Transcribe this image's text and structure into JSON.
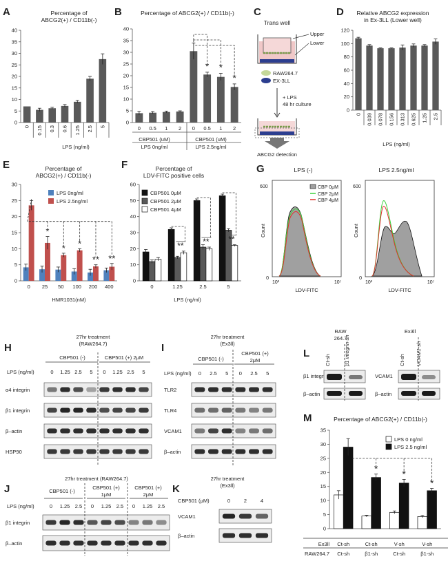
{
  "panels": {
    "A": {
      "letter": "A",
      "title": [
        "Percentage of",
        "ABCG2(+) / CD11b(-)"
      ],
      "chart_data": {
        "type": "bar",
        "categories": [
          "0",
          "0.15",
          "0.3",
          "0.6",
          "1.25",
          "2.5",
          "5"
        ],
        "values": [
          7,
          5.5,
          6.2,
          7.2,
          9,
          19,
          27.5
        ],
        "errors": [
          0,
          0.7,
          0.4,
          0.6,
          0.6,
          1,
          2.3
        ],
        "ylim": [
          0,
          40
        ],
        "yticks": [
          "0",
          "5",
          "10",
          "15",
          "20",
          "25",
          "30",
          "35",
          "40"
        ],
        "xlabel": "LPS (ng/ml)"
      }
    },
    "B": {
      "letter": "B",
      "title": [
        "Percentage of ABCG2(+) / CD11b(-)"
      ],
      "chart_data": {
        "type": "bar",
        "categories": [
          "0",
          "0.5",
          "1",
          "2",
          "0",
          "0.5",
          "1",
          "2"
        ],
        "values": [
          4,
          4.2,
          4.5,
          4.7,
          30.5,
          20.5,
          19.5,
          15.2
        ],
        "errors": [
          0.8,
          0.5,
          0.4,
          0.3,
          3.5,
          1,
          1.5,
          1.3
        ],
        "ylim": [
          0,
          40
        ],
        "yticks": [
          "0",
          "5",
          "10",
          "15",
          "20",
          "25",
          "30",
          "35",
          "40"
        ],
        "group_label": "CBP501 (uM)",
        "groups": [
          "LPS 0ng/ml",
          "LPS 2.5ng/ml"
        ],
        "star": "*"
      }
    },
    "C": {
      "letter": "C",
      "trans": "Trans well",
      "upper": "Upper",
      "lower": "Lower",
      "legend": [
        "RAW264.7",
        "EX-3LL"
      ],
      "lps": "+ LPS",
      "culture": "48 hr culture",
      "detect": "ABCG2 detection"
    },
    "D": {
      "letter": "D",
      "title": [
        "Relative ABCG2 expression",
        "in Ex-3LL (Lower well)"
      ],
      "chart_data": {
        "type": "bar",
        "categories": [
          "0",
          "0.039",
          "0.078",
          "0.156",
          "0.313",
          "0.625",
          "1.25",
          "2.5"
        ],
        "values": [
          108,
          97,
          93,
          93,
          94,
          97,
          97,
          103
        ],
        "errors": [
          1.5,
          1.5,
          0.5,
          0.5,
          4,
          2.5,
          1.5,
          4
        ],
        "ylim": [
          0,
          120
        ],
        "yticks": [
          "0",
          "20",
          "40",
          "60",
          "80",
          "100",
          "120"
        ],
        "xlabel": "LPS (ng/ml)"
      }
    },
    "E": {
      "letter": "E",
      "title": [
        "Percentage of",
        "ABCG2(+) / CD11b(-)"
      ],
      "chart_data": {
        "type": "bar",
        "categories": [
          "0",
          "25",
          "50",
          "100",
          "200",
          "400"
        ],
        "series": [
          {
            "name": "LPS 0ng/ml",
            "color": "#4f81bd",
            "values": [
              4.2,
              3.6,
              3.5,
              2.9,
              2.6,
              3.3
            ],
            "errors": [
              1,
              1,
              0.8,
              0.9,
              1,
              0.7
            ]
          },
          {
            "name": "LPS 2.5ng/ml",
            "color": "#c0504d",
            "values": [
              23.5,
              11.8,
              8,
              9.5,
              4.5,
              4.4
            ],
            "errors": [
              1.5,
              2,
              0.6,
              0.5,
              0.5,
              1
            ]
          }
        ],
        "ylim": [
          0,
          30
        ],
        "yticks": [
          "0",
          "5",
          "10",
          "15",
          "20",
          "25",
          "30"
        ],
        "xlabel": "HMR1031(nM)",
        "stars": [
          "*",
          "*",
          "*",
          "**",
          "**"
        ]
      }
    },
    "F": {
      "letter": "F",
      "title": [
        "Percentage of",
        "LDV-FITC positive cells"
      ],
      "chart_data": {
        "type": "bar",
        "categories": [
          "0",
          "1.25",
          "2.5",
          "5"
        ],
        "series": [
          {
            "name": "CBP501 0μM",
            "color": "#111111",
            "values": [
              18,
              32,
              50,
              53
            ],
            "errors": [
              1.5,
              1,
              1,
              1
            ]
          },
          {
            "name": "CBP501 2μM",
            "color": "#595959",
            "values": [
              12,
              14.5,
              21,
              31.5
            ],
            "errors": [
              1,
              0.8,
              1.5,
              1
            ]
          },
          {
            "name": "CBP501 4μM",
            "color": "#ffffff",
            "values": [
              13.5,
              17.5,
              20,
              22
            ],
            "errors": [
              1,
              1,
              1,
              0.5
            ]
          }
        ],
        "ylim": [
          0,
          60
        ],
        "yticks": [
          "0",
          "10",
          "20",
          "30",
          "40",
          "50",
          "60"
        ],
        "xlabel": "LPS (ng/ml)",
        "stars": [
          "**",
          "**",
          "**"
        ]
      }
    },
    "G": {
      "letter": "G",
      "left_title": "LPS (-)",
      "right_title": "LPS 2.5ng/ml",
      "legend": [
        "CBP 0μM",
        "CBP 2μM",
        "CBP 4μM"
      ],
      "ylabel": "Count",
      "xlabel": "LDV-FITC",
      "ymax": "600",
      "xmin": "10²",
      "xmax": "10⁷"
    },
    "H": {
      "letter": "H",
      "header": [
        "27hr treatment",
        "(RAW264.7)"
      ],
      "groups": [
        "CBP501 (-)",
        "CBP501 (+) 2μM"
      ],
      "lps_label": "LPS (ng/ml)",
      "lanes": [
        "0",
        "1.25",
        "2.5",
        "5",
        "0",
        "1.25",
        "2.5",
        "5"
      ],
      "rows": [
        "α4 integrin",
        "β1 integrin",
        "β–actin",
        "HSP90"
      ]
    },
    "I": {
      "letter": "I",
      "header": [
        "27hr treatment",
        "(Ex3ll)"
      ],
      "groups": [
        "CBP501 (-)",
        "CBP501 (+)",
        "2μM"
      ],
      "lps_label": "LPS (ng/ml)",
      "lanes": [
        "0",
        "2.5",
        "5",
        "0",
        "2.5",
        "5"
      ],
      "rows": [
        "TLR2",
        "TLR4",
        "VCAM1",
        "β–actin"
      ]
    },
    "J": {
      "letter": "J",
      "header": [
        "27hr treatment (RAW264.7)"
      ],
      "groups": [
        "CBP501 (-)",
        "CBP501 (+)",
        "1μM",
        "CBP501 (+)",
        "2μM"
      ],
      "lps_label": "LPS (ng/ml)",
      "lanes": [
        "0",
        "1.25",
        "2.5",
        "0",
        "1.25",
        "2.5",
        "0",
        "1.25",
        "2.5"
      ],
      "rows": [
        "β1 integrin",
        "β–actin"
      ]
    },
    "K": {
      "letter": "K",
      "header": [
        "27hr treatment",
        "(Ex3ll)"
      ],
      "lane_label": "CBP501 (μM)",
      "lanes": [
        "0",
        "2",
        "4"
      ],
      "rows": [
        "VCAM1",
        "β–actin"
      ]
    },
    "L": {
      "letter": "L",
      "left_header": [
        "RAW",
        "264.7"
      ],
      "left_lanes": [
        "Ct-sh",
        "β1 integrin-sh"
      ],
      "left_rows": [
        "β1 integrin",
        "β–actin"
      ],
      "right_header": "Ex3ll",
      "right_lanes": [
        "Ct-sh",
        "VCAM1-sh"
      ],
      "right_rows": [
        "VCAM1",
        "β–actin"
      ]
    },
    "M": {
      "letter": "M",
      "title": "Percentage of ABCG2(+) / CD11b(-)",
      "chart_data": {
        "type": "bar",
        "categories": [
          "Ct-sh / Ct-sh",
          "Ct-sh / β1-sh",
          "V-sh / Ct-sh",
          "V-sh / β1-sh"
        ],
        "series": [
          {
            "name": "LPS 0 ng/ml",
            "color": "#ffffff",
            "values": [
              12,
              4.5,
              5.8,
              4.3
            ],
            "errors": [
              1.5,
              0.3,
              0.5,
              0.4
            ]
          },
          {
            "name": "LPS 2.5 ng/ml",
            "color": "#111111",
            "values": [
              29,
              18.2,
              16.2,
              13.5
            ],
            "errors": [
              3,
              1.2,
              1.3,
              0.8
            ]
          }
        ],
        "ylim": [
          0,
          35
        ],
        "yticks": [
          "0",
          "5",
          "10",
          "15",
          "20",
          "25",
          "30",
          "35"
        ],
        "row1_label": "Ex3ll",
        "row1": [
          "Ct-sh",
          "Ct-sh",
          "V-sh",
          "V-sh"
        ],
        "row2_label": "RAW264.7",
        "row2": [
          "Ct-sh",
          "β1-sh",
          "Ct-sh",
          "β1-sh"
        ],
        "star": "*"
      }
    }
  }
}
